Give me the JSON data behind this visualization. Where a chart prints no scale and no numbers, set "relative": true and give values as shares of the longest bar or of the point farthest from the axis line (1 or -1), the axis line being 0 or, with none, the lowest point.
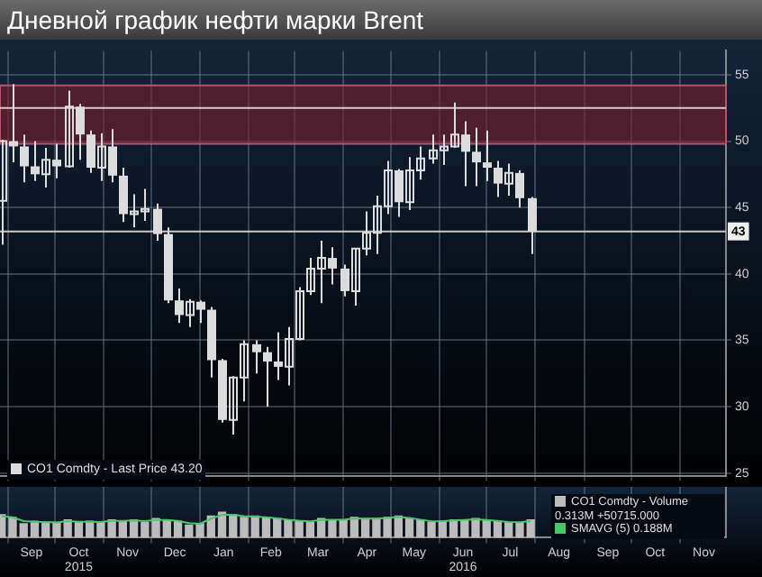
{
  "chart_data": [
    {
      "type": "candlestick",
      "title": "Дневной график нефти марки Brent",
      "x": [
        "2015-08-28",
        "2015-09-04",
        "2015-09-11",
        "2015-09-18",
        "2015-09-25",
        "2015-10-02",
        "2015-10-09",
        "2015-10-16",
        "2015-10-23",
        "2015-10-30",
        "2015-11-06",
        "2015-11-13",
        "2015-11-20",
        "2015-11-27",
        "2015-12-04",
        "2015-12-11",
        "2015-12-18",
        "2015-12-25",
        "2016-01-01",
        "2016-01-08",
        "2016-01-15",
        "2016-01-22",
        "2016-01-29",
        "2016-02-05",
        "2016-02-12",
        "2016-02-19",
        "2016-02-26",
        "2016-03-04",
        "2016-03-11",
        "2016-03-18",
        "2016-03-25",
        "2016-04-01",
        "2016-04-08",
        "2016-04-15",
        "2016-04-22",
        "2016-04-29",
        "2016-05-06",
        "2016-05-13",
        "2016-05-20",
        "2016-05-27",
        "2016-06-03",
        "2016-06-10",
        "2016-06-17",
        "2016-06-24",
        "2016-07-01",
        "2016-07-08",
        "2016-07-15",
        "2016-07-22",
        "2016-07-29"
      ],
      "series": [
        {
          "name": "CO1 Comdty - Last Price 43.20",
          "color": "#dcdcdc",
          "ohlc": [
            [
              45.5,
              50.1,
              42.2,
              50.0
            ],
            [
              50.0,
              54.3,
              48.4,
              49.6
            ],
            [
              49.6,
              50.5,
              46.9,
              48.1
            ],
            [
              48.1,
              50.0,
              47.0,
              47.5
            ],
            [
              47.5,
              49.5,
              46.5,
              48.6
            ],
            [
              48.6,
              49.8,
              47.2,
              48.1
            ],
            [
              48.1,
              53.8,
              48.0,
              52.6
            ],
            [
              52.6,
              52.8,
              48.6,
              50.5
            ],
            [
              50.5,
              50.8,
              47.6,
              48.0
            ],
            [
              48.0,
              50.6,
              47.0,
              49.6
            ],
            [
              49.6,
              50.9,
              46.9,
              47.4
            ],
            [
              47.4,
              48.0,
              43.9,
              44.5
            ],
            [
              44.5,
              46.0,
              43.5,
              44.7
            ],
            [
              44.7,
              46.4,
              44.0,
              44.9
            ],
            [
              44.9,
              45.3,
              42.5,
              43.0
            ],
            [
              43.0,
              43.5,
              37.8,
              38.0
            ],
            [
              38.0,
              38.9,
              36.3,
              36.9
            ],
            [
              36.9,
              38.1,
              36.0,
              37.9
            ],
            [
              37.9,
              38.0,
              36.3,
              37.3
            ],
            [
              37.3,
              37.5,
              32.2,
              33.5
            ],
            [
              33.5,
              33.6,
              28.8,
              29.0
            ],
            [
              29.0,
              32.3,
              27.9,
              32.2
            ],
            [
              32.2,
              35.0,
              30.4,
              34.7
            ],
            [
              34.7,
              35.0,
              32.5,
              34.1
            ],
            [
              34.1,
              34.5,
              30.0,
              33.4
            ],
            [
              33.4,
              35.6,
              32.0,
              33.0
            ],
            [
              33.0,
              36.0,
              31.6,
              35.1
            ],
            [
              35.1,
              39.0,
              35.0,
              38.7
            ],
            [
              38.7,
              41.2,
              38.4,
              40.4
            ],
            [
              40.4,
              42.5,
              37.8,
              41.2
            ],
            [
              41.2,
              42.0,
              39.2,
              40.4
            ],
            [
              40.4,
              40.7,
              38.3,
              38.7
            ],
            [
              38.7,
              41.9,
              37.6,
              41.9
            ],
            [
              41.9,
              44.7,
              41.4,
              43.1
            ],
            [
              43.1,
              45.9,
              41.5,
              45.1
            ],
            [
              45.1,
              48.5,
              44.5,
              47.8
            ],
            [
              47.8,
              47.9,
              44.3,
              45.4
            ],
            [
              45.4,
              48.8,
              44.8,
              47.8
            ],
            [
              47.8,
              49.6,
              47.1,
              48.7
            ],
            [
              48.7,
              50.5,
              48.3,
              49.3
            ],
            [
              49.3,
              50.5,
              48.2,
              49.6
            ],
            [
              49.6,
              52.9,
              49.5,
              50.5
            ],
            [
              50.5,
              51.5,
              46.6,
              49.2
            ],
            [
              49.2,
              51.0,
              46.6,
              48.4
            ],
            [
              48.4,
              50.8,
              47.0,
              48.0
            ],
            [
              48.0,
              48.5,
              45.8,
              46.8
            ],
            [
              46.8,
              48.3,
              45.9,
              47.6
            ],
            [
              47.6,
              47.8,
              45.0,
              45.7
            ],
            [
              45.7,
              45.8,
              41.5,
              43.2
            ]
          ]
        }
      ],
      "xlim": [
        "2015-08-27",
        "2016-11-30"
      ],
      "xticks": [
        {
          "value": "2015-09-01",
          "label": null
        },
        {
          "value": "2015-10-01",
          "label": null
        },
        {
          "value": "2015-11-01",
          "label": null
        },
        {
          "value": "2015-12-01",
          "label": null
        },
        {
          "value": "2016-01-01",
          "label": null
        },
        {
          "value": "2016-02-01",
          "label": null
        },
        {
          "value": "2016-03-01",
          "label": null
        },
        {
          "value": "2016-04-01",
          "label": null
        },
        {
          "value": "2016-05-01",
          "label": null
        },
        {
          "value": "2016-06-01",
          "label": null
        },
        {
          "value": "2016-07-01",
          "label": null
        },
        {
          "value": "2016-08-01",
          "label": null
        },
        {
          "value": "2016-09-01",
          "label": null
        },
        {
          "value": "2016-10-01",
          "label": null
        },
        {
          "value": "2016-11-01",
          "label": null
        }
      ],
      "ylim": [
        24.8,
        56.8
      ],
      "yticks": [
        25,
        30,
        35,
        40,
        45,
        50,
        55
      ],
      "ref_lines": [
        {
          "axis": "y",
          "value": 43.2,
          "label": "43",
          "color": "#c8c8c8"
        },
        {
          "axis": "y",
          "value": 52.5,
          "label": null,
          "color": "#d8c8c8"
        }
      ],
      "bands": [
        {
          "axis": "y",
          "from": 49.8,
          "to": 54.2,
          "label": null,
          "color": "#7a1f2e"
        }
      ],
      "grid": true,
      "legend": "bottom left",
      "tick_labels": "y"
    },
    {
      "type": "bar",
      "relative": true,
      "x": [
        "2015-08-28",
        "2015-09-04",
        "2015-09-11",
        "2015-09-18",
        "2015-09-25",
        "2015-10-02",
        "2015-10-09",
        "2015-10-16",
        "2015-10-23",
        "2015-10-30",
        "2015-11-06",
        "2015-11-13",
        "2015-11-20",
        "2015-11-27",
        "2015-12-04",
        "2015-12-11",
        "2015-12-18",
        "2015-12-25",
        "2016-01-01",
        "2016-01-08",
        "2016-01-15",
        "2016-01-22",
        "2016-01-29",
        "2016-02-05",
        "2016-02-12",
        "2016-02-19",
        "2016-02-26",
        "2016-03-04",
        "2016-03-11",
        "2016-03-18",
        "2016-03-25",
        "2016-04-01",
        "2016-04-08",
        "2016-04-15",
        "2016-04-22",
        "2016-04-29",
        "2016-05-06",
        "2016-05-13",
        "2016-05-20",
        "2016-05-27",
        "2016-06-03",
        "2016-06-10",
        "2016-06-17",
        "2016-06-24",
        "2016-07-01",
        "2016-07-08",
        "2016-07-15",
        "2016-07-22",
        "2016-07-29"
      ],
      "series": [
        {
          "name": "CO1 Comdty - Volume 0.313M +50715.000",
          "color": "#bcbcbc",
          "values": [
            0.9,
            0.8,
            0.55,
            0.65,
            0.6,
            0.6,
            0.7,
            0.6,
            0.65,
            0.6,
            0.7,
            0.65,
            0.7,
            0.6,
            0.75,
            0.7,
            0.65,
            0.5,
            0.55,
            0.85,
            1,
            0.9,
            0.8,
            0.85,
            0.8,
            0.75,
            0.7,
            0.65,
            0.6,
            0.75,
            0.7,
            0.7,
            0.8,
            0.75,
            0.75,
            0.8,
            0.85,
            0.75,
            0.7,
            0.6,
            0.65,
            0.7,
            0.7,
            0.75,
            0.7,
            0.65,
            0.6,
            0.6,
            0.7
          ]
        },
        {
          "name": "SMAVG (5) 0.188M",
          "type": "line",
          "color": "#4cc46a",
          "values": [
            0.85,
            0.8,
            0.65,
            0.63,
            0.62,
            0.6,
            0.65,
            0.63,
            0.63,
            0.62,
            0.66,
            0.66,
            0.68,
            0.65,
            0.7,
            0.7,
            0.66,
            0.57,
            0.55,
            0.75,
            0.9,
            0.9,
            0.85,
            0.83,
            0.8,
            0.76,
            0.71,
            0.67,
            0.64,
            0.7,
            0.71,
            0.71,
            0.76,
            0.75,
            0.75,
            0.78,
            0.82,
            0.78,
            0.71,
            0.64,
            0.65,
            0.68,
            0.7,
            0.72,
            0.7,
            0.66,
            0.62,
            0.61,
            0.65
          ]
        }
      ],
      "xlim": [
        "2015-08-27",
        "2016-11-30"
      ],
      "xticks": [
        {
          "value": "2015-09-01",
          "label": null
        },
        {
          "value": "2015-09-16",
          "label": "Sep"
        },
        {
          "value": "2015-10-01",
          "label": null
        },
        {
          "value": "2015-10-16",
          "label": "Oct\n2015"
        },
        {
          "value": "2015-11-01",
          "label": null
        },
        {
          "value": "2015-11-16",
          "label": "Nov"
        },
        {
          "value": "2015-12-01",
          "label": null
        },
        {
          "value": "2015-12-16",
          "label": "Dec"
        },
        {
          "value": "2016-01-01",
          "label": null
        },
        {
          "value": "2016-01-16",
          "label": "Jan"
        },
        {
          "value": "2016-02-01",
          "label": null
        },
        {
          "value": "2016-02-15",
          "label": "Feb"
        },
        {
          "value": "2016-03-01",
          "label": null
        },
        {
          "value": "2016-03-16",
          "label": "Mar"
        },
        {
          "value": "2016-04-01",
          "label": null
        },
        {
          "value": "2016-04-16",
          "label": "Apr"
        },
        {
          "value": "2016-05-01",
          "label": null
        },
        {
          "value": "2016-05-16",
          "label": "May"
        },
        {
          "value": "2016-06-01",
          "label": null
        },
        {
          "value": "2016-06-16",
          "label": "Jun\n2016"
        },
        {
          "value": "2016-07-01",
          "label": null
        },
        {
          "value": "2016-07-16",
          "label": "Jul"
        },
        {
          "value": "2016-08-01",
          "label": null
        },
        {
          "value": "2016-08-16",
          "label": "Aug"
        },
        {
          "value": "2016-09-01",
          "label": null
        },
        {
          "value": "2016-09-16",
          "label": "Sep"
        },
        {
          "value": "2016-10-01",
          "label": null
        },
        {
          "value": "2016-10-16",
          "label": "Oct"
        },
        {
          "value": "2016-11-01",
          "label": null
        },
        {
          "value": "2016-11-16",
          "label": "Nov"
        }
      ],
      "grid": "x",
      "legend": "right",
      "tick_labels": "x"
    }
  ]
}
